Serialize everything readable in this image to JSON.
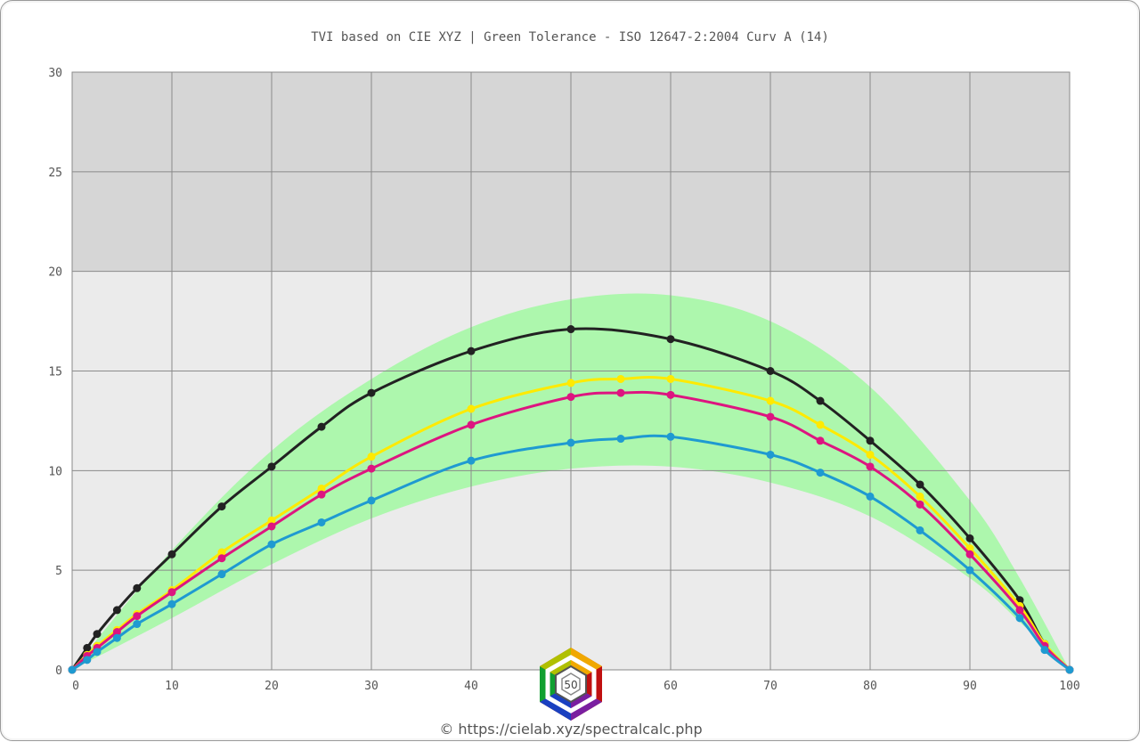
{
  "chart_data": {
    "type": "line",
    "title": "TVI based on CIE XYZ  |  Green Tolerance - ISO 12647-2:2004 Curv A (14)",
    "xlabel": "",
    "ylabel": "",
    "xlim": [
      0,
      100
    ],
    "ylim": [
      0,
      30
    ],
    "x_ticks": [
      0,
      10,
      20,
      30,
      40,
      50,
      60,
      70,
      80,
      90,
      100
    ],
    "y_ticks": [
      0,
      5,
      10,
      15,
      20,
      25,
      30
    ],
    "x_tick_labels": [
      "0",
      "10",
      "20",
      "30",
      "40",
      "50",
      "60",
      "70",
      "80",
      "90",
      "100"
    ],
    "y_tick_labels": [
      "0",
      "5",
      "10",
      "15",
      "20",
      "25",
      "30"
    ],
    "grid": true,
    "legend": "none",
    "tolerance_band": {
      "color": "#adf7ad",
      "upper": {
        "x": [
          0,
          10,
          20,
          30,
          40,
          50,
          60,
          70,
          80,
          90,
          95,
          100
        ],
        "y": [
          0,
          6.0,
          11.0,
          14.6,
          17.2,
          18.6,
          18.8,
          17.5,
          14.2,
          8.5,
          4.6,
          0
        ]
      },
      "lower": {
        "x": [
          0,
          10,
          20,
          30,
          40,
          50,
          60,
          70,
          80,
          90,
          95,
          100
        ],
        "y": [
          0,
          2.6,
          5.3,
          7.6,
          9.2,
          10.1,
          10.2,
          9.4,
          7.7,
          4.6,
          2.4,
          0
        ]
      }
    },
    "series": [
      {
        "color": "#222222",
        "x": [
          0,
          1.5,
          2.5,
          4.5,
          6.5,
          10,
          15,
          20,
          25,
          30,
          40,
          50,
          60,
          70,
          75,
          80,
          85,
          90,
          95,
          97.5,
          100
        ],
        "y": [
          0,
          1.1,
          1.8,
          3.0,
          4.1,
          5.8,
          8.2,
          10.2,
          12.2,
          13.9,
          16.0,
          17.1,
          16.6,
          15.0,
          13.5,
          11.5,
          9.3,
          6.6,
          3.5,
          1.3,
          0
        ]
      },
      {
        "color": "#ffea00",
        "x": [
          0,
          1.5,
          2.5,
          4.5,
          6.5,
          10,
          15,
          20,
          25,
          30,
          40,
          50,
          55,
          60,
          70,
          75,
          80,
          85,
          90,
          95,
          97.5,
          100
        ],
        "y": [
          0,
          0.75,
          1.2,
          2.0,
          2.8,
          4.0,
          5.9,
          7.5,
          9.1,
          10.7,
          13.1,
          14.4,
          14.6,
          14.6,
          13.5,
          12.3,
          10.8,
          8.7,
          6.1,
          3.2,
          1.3,
          0
        ]
      },
      {
        "color": "#dd1580",
        "x": [
          0,
          1.5,
          2.5,
          4.5,
          6.5,
          10,
          15,
          20,
          25,
          30,
          40,
          50,
          55,
          60,
          70,
          75,
          80,
          85,
          90,
          95,
          97.5,
          100
        ],
        "y": [
          0,
          0.7,
          1.1,
          1.9,
          2.7,
          3.9,
          5.6,
          7.2,
          8.8,
          10.1,
          12.3,
          13.7,
          13.9,
          13.8,
          12.7,
          11.5,
          10.2,
          8.3,
          5.8,
          3.0,
          1.2,
          0
        ]
      },
      {
        "color": "#1f9ad1",
        "x": [
          0,
          1.5,
          2.5,
          4.5,
          6.5,
          10,
          15,
          20,
          25,
          30,
          40,
          50,
          55,
          60,
          70,
          75,
          80,
          85,
          90,
          95,
          97.5,
          100
        ],
        "y": [
          0,
          0.5,
          0.9,
          1.6,
          2.3,
          3.3,
          4.8,
          6.3,
          7.4,
          8.5,
          10.5,
          11.4,
          11.6,
          11.7,
          10.8,
          9.9,
          8.7,
          7.0,
          5.0,
          2.6,
          1.0,
          0
        ]
      }
    ]
  },
  "footer": {
    "credit": "© https://cielab.xyz/spectralcalc.php",
    "logo_text": "50"
  },
  "colors": {
    "plot_upper_background": "#d6d6d6",
    "plot_lower_background": "#ebebeb",
    "grid": "#8a8a8a",
    "text": "#555555"
  }
}
